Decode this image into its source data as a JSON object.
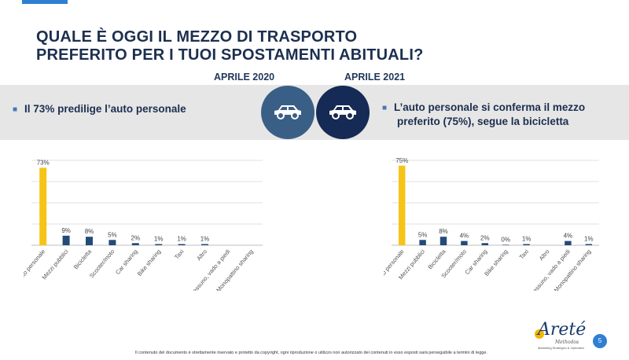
{
  "title_line1": "QUALE È OGGI IL MEZZO DI TRASPORTO",
  "title_line2": "PREFERITO PER I TUOI SPOSTAMENTI ABITUALI?",
  "year_2020": "APRILE 2020",
  "year_2021": "APRILE 2021",
  "bullet_left": "Il 73% predilige l’auto personale",
  "bullet_right_line1": "L’auto personale si conferma il mezzo",
  "bullet_right_line2": "preferito (75%), segue la bicicletta",
  "footer": "Il contenuto del documento è strettamente riservato e protetto da copyright, ogni riproduzione o utilizzo non autorizzato dei contenuti in esso esposti sarà perseguibile a termini di legge.",
  "logo": {
    "name": "Areté",
    "sub": "Methodos",
    "tag": "Marketing Strategico & Operativo"
  },
  "page_number": "5",
  "colors": {
    "highlight": "#f6c416",
    "bar": "#244a78",
    "grid": "#d9d9d9",
    "circle_left": "#3a5f87",
    "circle_right": "#152a54"
  },
  "icons": [
    "car-icon",
    "car-icon"
  ],
  "chart_data": [
    {
      "type": "bar",
      "title": "APRILE 2020",
      "categories": [
        "Auto personale",
        "Mezzi pubblici",
        "Bicicletta",
        "Scooter/moto",
        "Car sharing",
        "Bike sharing",
        "Taxi",
        "Altro",
        "Nessuno, vado a piedi",
        "Monopattino sharing"
      ],
      "values": [
        73,
        9,
        8,
        5,
        2,
        1,
        1,
        1,
        null,
        null
      ],
      "labels": [
        "73%",
        "9%",
        "8%",
        "5%",
        "2%",
        "1%",
        "1%",
        "1%",
        "",
        ""
      ],
      "ylim": [
        0,
        80
      ]
    },
    {
      "type": "bar",
      "title": "APRILE 2021",
      "categories": [
        "Auto personale",
        "Mezzi pubblici",
        "Bicicletta",
        "Scooter/moto",
        "Car sharing",
        "Bike sharing",
        "Taxi",
        "Altro",
        "Nessuno, vado a piedi",
        "Monopattino sharing"
      ],
      "values": [
        75,
        5,
        8,
        4,
        2,
        0,
        1,
        null,
        4,
        1
      ],
      "labels": [
        "75%",
        "5%",
        "8%",
        "4%",
        "2%",
        "0%",
        "1%",
        "",
        "4%",
        "1%"
      ],
      "ylim": [
        0,
        80
      ]
    }
  ]
}
